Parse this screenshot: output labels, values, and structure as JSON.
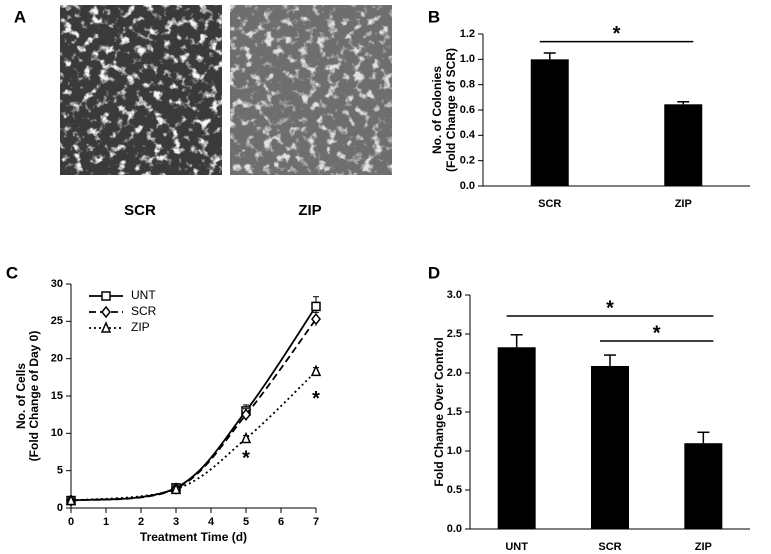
{
  "figure": {
    "panel_labels": [
      "A",
      "B",
      "C",
      "D"
    ],
    "image_labels": [
      "SCR",
      "ZIP"
    ]
  },
  "chart_data": [
    {
      "type": "bar",
      "ylabel": [
        "No. of Colonies",
        "(Fold Change of SCR)"
      ],
      "categories": [
        "SCR",
        "ZIP"
      ],
      "values": [
        1.0,
        0.645
      ],
      "errors": [
        0.05,
        0.02
      ],
      "color": "#000000",
      "ylim": [
        0,
        1.2
      ],
      "yticks": [
        {
          "value": 0,
          "label": "0.0"
        },
        {
          "value": 0.2,
          "label": "0.2"
        },
        {
          "value": 0.4,
          "label": "0.4"
        },
        {
          "value": 0.6,
          "label": "0.6"
        },
        {
          "value": 0.8,
          "label": "0.8"
        },
        {
          "value": 1.0,
          "label": "1.0"
        },
        {
          "value": 1.2,
          "label": "1.2"
        }
      ],
      "annotations": [
        {
          "text": "*",
          "x": [
            "SCR",
            "ZIP"
          ],
          "y": 1.14
        }
      ]
    },
    {
      "type": "line",
      "xlabel": "Treatment Time (d)",
      "ylabel": [
        "No. of Cells",
        "(Fold Change of Day 0)"
      ],
      "x": [
        0,
        3,
        5,
        7
      ],
      "series": [
        {
          "name": "UNT",
          "color": "#000000",
          "dash": "solid",
          "marker": "square",
          "values": [
            1,
            2.7,
            13,
            27
          ],
          "errors": [
            0.3,
            0.5,
            0.8,
            1.3
          ]
        },
        {
          "name": "SCR",
          "color": "#000000",
          "dash": "dashed",
          "marker": "diamond",
          "values": [
            1,
            2.6,
            12.5,
            25.3
          ],
          "errors": [
            0.3,
            0.4,
            0.8,
            0.9
          ]
        },
        {
          "name": "ZIP",
          "color": "#000000",
          "dash": "dotted",
          "marker": "triangle",
          "values": [
            1,
            2.5,
            9.3,
            18.3
          ],
          "errors": [
            0.2,
            0.3,
            0.4,
            0.5
          ]
        }
      ],
      "xlim": [
        0,
        7
      ],
      "xticks": [
        0,
        1,
        2,
        3,
        4,
        5,
        6,
        7
      ],
      "ylim": [
        0,
        30
      ],
      "yticks": [
        0,
        5,
        10,
        15,
        20,
        25,
        30
      ],
      "legend": "upper left",
      "annotations": [
        {
          "text": "*",
          "x": 5,
          "y": 6.5
        },
        {
          "text": "*",
          "x": 7,
          "y": 14.5
        }
      ]
    },
    {
      "type": "bar",
      "ylabel": [
        "Fold Change Over Control"
      ],
      "categories": [
        "UNT",
        "SCR",
        "ZIP"
      ],
      "values": [
        2.33,
        2.09,
        1.1
      ],
      "errors": [
        0.16,
        0.14,
        0.14
      ],
      "color": "#000000",
      "ylim": [
        0,
        3
      ],
      "yticks": [
        {
          "value": 0,
          "label": "0.0"
        },
        {
          "value": 0.5,
          "label": "0.5"
        },
        {
          "value": 1.0,
          "label": "1.0"
        },
        {
          "value": 1.5,
          "label": "1.5"
        },
        {
          "value": 2.0,
          "label": "2.0"
        },
        {
          "value": 2.5,
          "label": "2.5"
        },
        {
          "value": 3.0,
          "label": "3.0"
        }
      ],
      "annotations": [
        {
          "text": "*",
          "x": [
            "UNT",
            "ZIP"
          ],
          "y": 2.73
        },
        {
          "text": "*",
          "x": [
            "SCR",
            "ZIP"
          ],
          "y": 2.41
        }
      ]
    }
  ]
}
